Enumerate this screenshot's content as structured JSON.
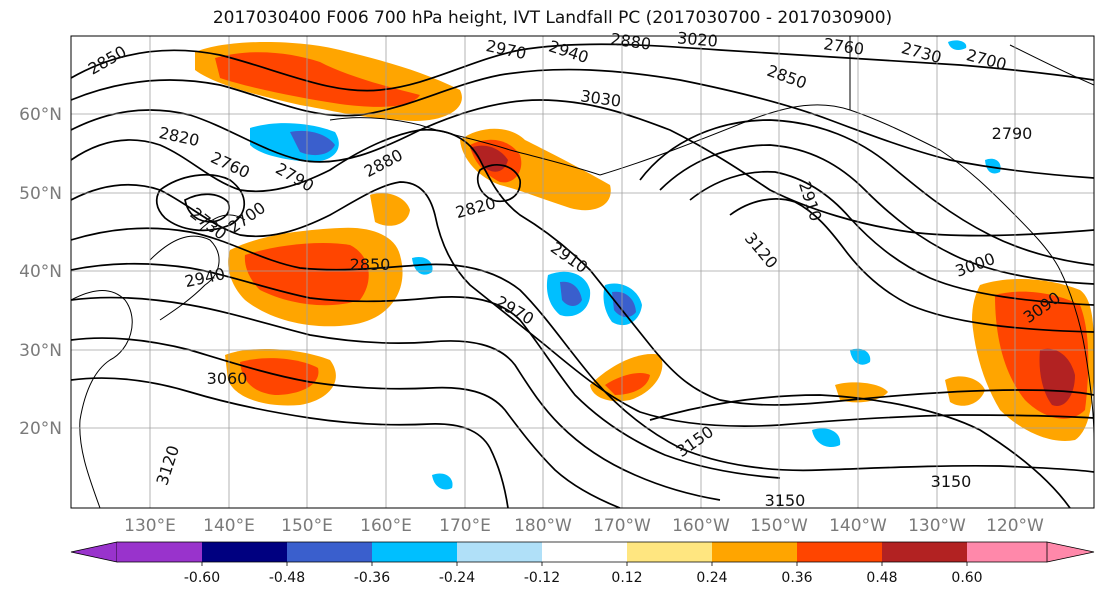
{
  "title": "2017030400 F006 700 hPa height, IVT Landfall PC (2017030700 - 2017030900)",
  "lat_labels": [
    "60°N",
    "50°N",
    "40°N",
    "30°N",
    "20°N"
  ],
  "lon_labels": [
    "130°E",
    "140°E",
    "150°E",
    "160°E",
    "170°E",
    "180°W",
    "170°W",
    "160°W",
    "150°W",
    "140°W",
    "130°W",
    "120°W"
  ],
  "contour_labels": [
    "2850",
    "2970",
    "2940",
    "2880",
    "3020",
    "2760",
    "2730",
    "2700",
    "2850",
    "3030",
    "2790",
    "2820",
    "2790",
    "2760",
    "2880",
    "2730",
    "2700",
    "2820",
    "2910",
    "3120",
    "2850",
    "2940",
    "2910",
    "2970",
    "3000",
    "3090",
    "3060",
    "3150",
    "3120",
    "3150",
    "3150"
  ],
  "colorbar": {
    "colors": [
      "#9933cc",
      "#000080",
      "#3a5fcd",
      "#00bfff",
      "#b0e0f8",
      "#ffffff",
      "#ffe680",
      "#ffa500",
      "#ff4500",
      "#b22222",
      "#ff88aa"
    ],
    "tick_labels": [
      "-0.60",
      "-0.48",
      "-0.36",
      "-0.24",
      "-0.12",
      "0.12",
      "0.24",
      "0.36",
      "0.48",
      "0.60"
    ]
  },
  "colors": {
    "contour": "#000000",
    "coast": "#000000",
    "grid": "#a0a0a0",
    "axis_text": "#7a7a7a"
  }
}
